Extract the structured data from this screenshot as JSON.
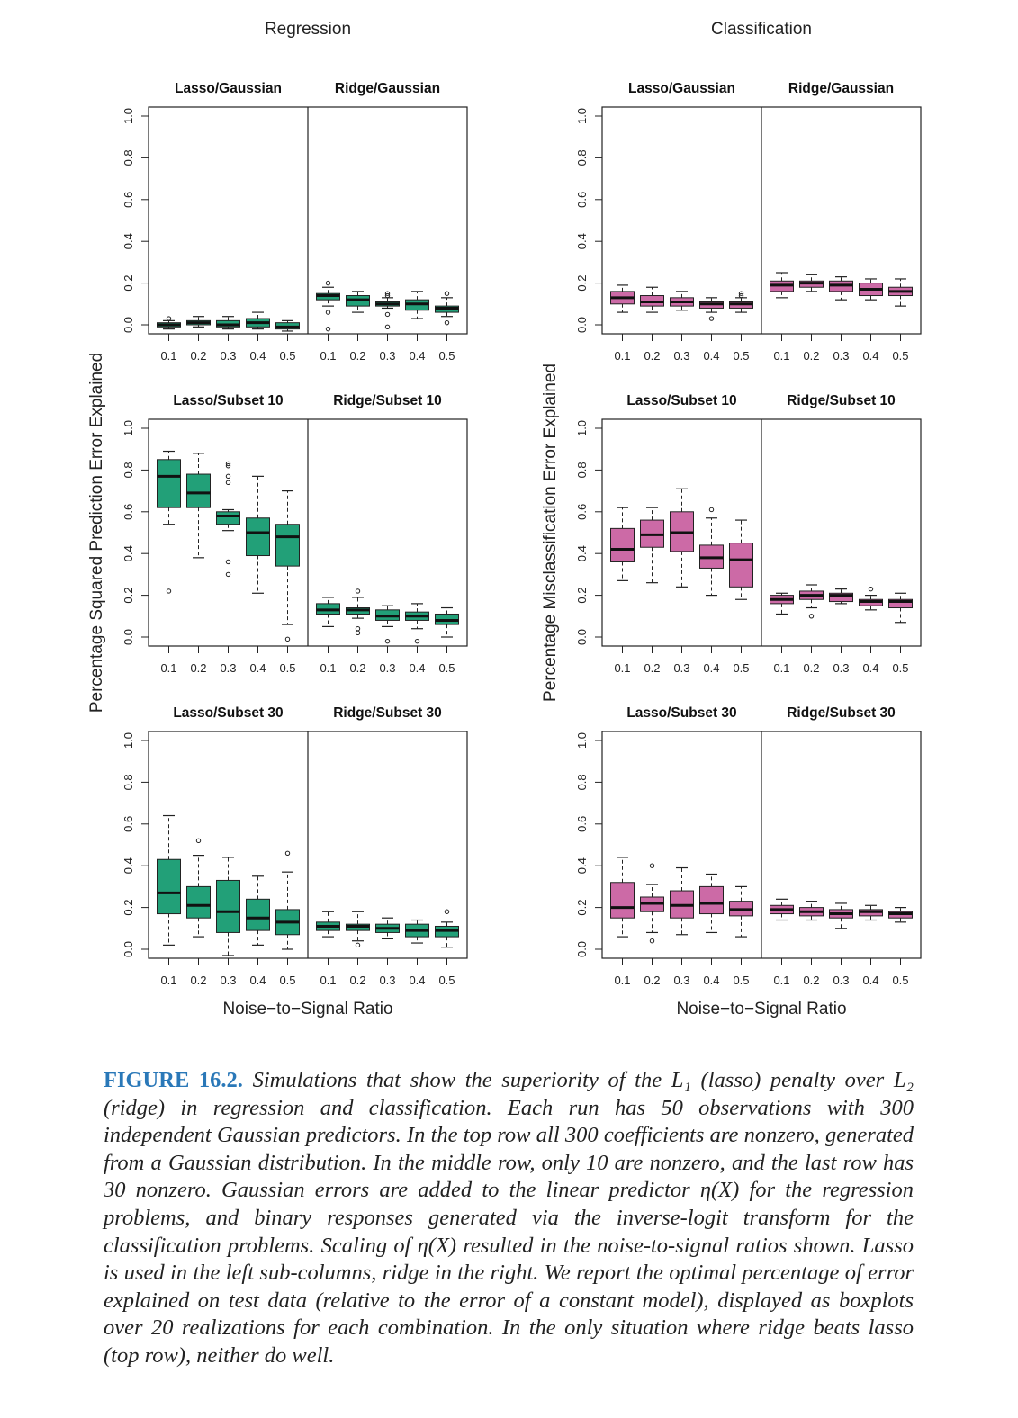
{
  "chart_data": {
    "type": "box",
    "column_titles": [
      "Regression",
      "Classification"
    ],
    "ylabels": [
      "Percentage Squared Prediction Error Explained",
      "Percentage Misclassification Error Explained"
    ],
    "xlabel": "Noise−to−Signal Ratio",
    "x_ticks": [
      "0.1",
      "0.2",
      "0.3",
      "0.4",
      "0.5"
    ],
    "y_ticks": [
      "0.0",
      "0.2",
      "0.4",
      "0.6",
      "0.8",
      "1.0"
    ],
    "ylim": [
      0,
      1
    ],
    "colors": {
      "regression": "#22a078",
      "classification": "#cc6aa6"
    },
    "grid": false,
    "box_stats_order": [
      "lower_whisker",
      "q1",
      "median",
      "q3",
      "upper_whisker"
    ],
    "panels": [
      {
        "title": "Lasso/Gaussian",
        "column": "Regression",
        "row": 1,
        "method": "lasso",
        "boxes": [
          [
            -0.02,
            -0.01,
            0.0,
            0.01,
            0.02
          ],
          [
            -0.01,
            0.0,
            0.01,
            0.02,
            0.04
          ],
          [
            -0.02,
            -0.01,
            0.0,
            0.02,
            0.04
          ],
          [
            -0.02,
            -0.01,
            0.01,
            0.03,
            0.06
          ],
          [
            -0.03,
            -0.02,
            -0.01,
            0.01,
            0.02
          ]
        ],
        "outliers": [
          [
            0.03
          ],
          [],
          [],
          [],
          []
        ]
      },
      {
        "title": "Ridge/Gaussian",
        "column": "Regression",
        "row": 1,
        "method": "ridge",
        "boxes": [
          [
            0.09,
            0.12,
            0.14,
            0.15,
            0.18
          ],
          [
            0.06,
            0.09,
            0.12,
            0.14,
            0.16
          ],
          [
            0.08,
            0.09,
            0.1,
            0.11,
            0.13
          ],
          [
            0.03,
            0.07,
            0.1,
            0.12,
            0.16
          ],
          [
            0.04,
            0.06,
            0.08,
            0.09,
            0.13
          ]
        ],
        "outliers": [
          [
            0.2,
            0.06,
            -0.02
          ],
          [],
          [
            0.15,
            0.14,
            0.05,
            -0.01
          ],
          [],
          [
            0.15,
            0.01
          ]
        ]
      },
      {
        "title": "Lasso/Gaussian",
        "column": "Classification",
        "row": 1,
        "method": "lasso",
        "boxes": [
          [
            0.06,
            0.1,
            0.13,
            0.16,
            0.19
          ],
          [
            0.06,
            0.09,
            0.11,
            0.14,
            0.18
          ],
          [
            0.07,
            0.09,
            0.11,
            0.13,
            0.16
          ],
          [
            0.06,
            0.08,
            0.1,
            0.11,
            0.13
          ],
          [
            0.06,
            0.08,
            0.1,
            0.11,
            0.13
          ]
        ],
        "outliers": [
          [],
          [],
          [],
          [
            0.03
          ],
          [
            0.15,
            0.14
          ]
        ]
      },
      {
        "title": "Ridge/Gaussian",
        "column": "Classification",
        "row": 1,
        "method": "ridge",
        "boxes": [
          [
            0.13,
            0.16,
            0.19,
            0.21,
            0.25
          ],
          [
            0.16,
            0.18,
            0.2,
            0.21,
            0.24
          ],
          [
            0.12,
            0.16,
            0.19,
            0.21,
            0.23
          ],
          [
            0.12,
            0.14,
            0.17,
            0.2,
            0.22
          ],
          [
            0.09,
            0.14,
            0.16,
            0.18,
            0.22
          ]
        ],
        "outliers": [
          [],
          [],
          [],
          [],
          []
        ]
      },
      {
        "title": "Lasso/Subset 10",
        "column": "Regression",
        "row": 2,
        "method": "lasso",
        "boxes": [
          [
            0.54,
            0.62,
            0.77,
            0.85,
            0.89
          ],
          [
            0.38,
            0.62,
            0.69,
            0.78,
            0.88
          ],
          [
            0.51,
            0.54,
            0.58,
            0.6,
            0.61
          ],
          [
            0.21,
            0.39,
            0.5,
            0.57,
            0.77
          ],
          [
            0.06,
            0.34,
            0.48,
            0.54,
            0.7
          ]
        ],
        "outliers": [
          [
            0.22
          ],
          [],
          [
            0.83,
            0.82,
            0.77,
            0.74,
            0.36,
            0.3
          ],
          [],
          [
            -0.01
          ]
        ]
      },
      {
        "title": "Ridge/Subset 10",
        "column": "Regression",
        "row": 2,
        "method": "ridge",
        "boxes": [
          [
            0.05,
            0.11,
            0.13,
            0.16,
            0.19
          ],
          [
            0.09,
            0.11,
            0.13,
            0.14,
            0.19
          ],
          [
            0.05,
            0.08,
            0.1,
            0.13,
            0.15
          ],
          [
            0.04,
            0.08,
            0.1,
            0.12,
            0.16
          ],
          [
            0.0,
            0.06,
            0.08,
            0.11,
            0.14
          ]
        ],
        "outliers": [
          [],
          [
            0.22,
            0.04,
            0.02
          ],
          [
            -0.02
          ],
          [
            -0.02
          ],
          []
        ]
      },
      {
        "title": "Lasso/Subset 10",
        "column": "Classification",
        "row": 2,
        "method": "lasso",
        "boxes": [
          [
            0.27,
            0.36,
            0.42,
            0.52,
            0.62
          ],
          [
            0.26,
            0.43,
            0.49,
            0.56,
            0.62
          ],
          [
            0.24,
            0.41,
            0.5,
            0.6,
            0.71
          ],
          [
            0.2,
            0.33,
            0.38,
            0.44,
            0.57
          ],
          [
            0.18,
            0.24,
            0.37,
            0.45,
            0.56
          ]
        ],
        "outliers": [
          [],
          [],
          [],
          [
            0.61
          ],
          []
        ]
      },
      {
        "title": "Ridge/Subset 10",
        "column": "Classification",
        "row": 2,
        "method": "ridge",
        "boxes": [
          [
            0.11,
            0.16,
            0.18,
            0.2,
            0.21
          ],
          [
            0.14,
            0.18,
            0.2,
            0.22,
            0.25
          ],
          [
            0.16,
            0.17,
            0.2,
            0.21,
            0.23
          ],
          [
            0.13,
            0.15,
            0.17,
            0.18,
            0.2
          ],
          [
            0.07,
            0.14,
            0.17,
            0.18,
            0.21
          ]
        ],
        "outliers": [
          [],
          [
            0.1
          ],
          [],
          [
            0.23
          ],
          []
        ]
      },
      {
        "title": "Lasso/Subset 30",
        "column": "Regression",
        "row": 3,
        "method": "lasso",
        "boxes": [
          [
            0.02,
            0.17,
            0.27,
            0.43,
            0.64
          ],
          [
            0.06,
            0.15,
            0.21,
            0.3,
            0.45
          ],
          [
            -0.03,
            0.08,
            0.18,
            0.33,
            0.44
          ],
          [
            0.02,
            0.09,
            0.15,
            0.24,
            0.35
          ],
          [
            0.0,
            0.07,
            0.13,
            0.19,
            0.37
          ]
        ],
        "outliers": [
          [],
          [
            0.52
          ],
          [],
          [],
          [
            0.46
          ]
        ]
      },
      {
        "title": "Ridge/Subset 30",
        "column": "Regression",
        "row": 3,
        "method": "ridge",
        "boxes": [
          [
            0.06,
            0.09,
            0.11,
            0.13,
            0.18
          ],
          [
            0.04,
            0.09,
            0.11,
            0.12,
            0.18
          ],
          [
            0.05,
            0.08,
            0.1,
            0.12,
            0.15
          ],
          [
            0.03,
            0.06,
            0.09,
            0.12,
            0.14
          ],
          [
            0.01,
            0.06,
            0.09,
            0.11,
            0.13
          ]
        ],
        "outliers": [
          [],
          [
            0.02
          ],
          [],
          [],
          [
            0.18
          ]
        ]
      },
      {
        "title": "Lasso/Subset 30",
        "column": "Classification",
        "row": 3,
        "method": "lasso",
        "boxes": [
          [
            0.06,
            0.15,
            0.2,
            0.32,
            0.44
          ],
          [
            0.08,
            0.18,
            0.22,
            0.25,
            0.31
          ],
          [
            0.07,
            0.15,
            0.21,
            0.28,
            0.39
          ],
          [
            0.08,
            0.17,
            0.22,
            0.3,
            0.36
          ],
          [
            0.06,
            0.16,
            0.19,
            0.23,
            0.3
          ]
        ],
        "outliers": [
          [],
          [
            0.4,
            0.04
          ],
          [],
          [],
          []
        ]
      },
      {
        "title": "Ridge/Subset 30",
        "column": "Classification",
        "row": 3,
        "method": "ridge",
        "boxes": [
          [
            0.14,
            0.17,
            0.19,
            0.21,
            0.24
          ],
          [
            0.14,
            0.16,
            0.18,
            0.2,
            0.23
          ],
          [
            0.1,
            0.15,
            0.17,
            0.19,
            0.22
          ],
          [
            0.14,
            0.16,
            0.18,
            0.19,
            0.21
          ],
          [
            0.13,
            0.15,
            0.17,
            0.18,
            0.2
          ]
        ],
        "outliers": [
          [],
          [],
          [],
          [],
          []
        ]
      }
    ]
  },
  "caption": {
    "label": "FIGURE 16.2.",
    "text": " Simulations that show the superiority of the L₁ (lasso) penalty over L₂ (ridge) in regression and classification. Each run has 50 observations with 300 independent Gaussian predictors. In the top row all 300 coefficients are nonzero, generated from a Gaussian distribution. In the middle row, only 10 are nonzero, and the last row has 30 nonzero. Gaussian errors are added to the linear predictor η(X) for the regression problems, and binary responses generated via the inverse-logit transform for the classification problems. Scaling of η(X) resulted in the noise-to-signal ratios shown. Lasso is used in the left sub-columns, ridge in the right. We report the optimal percentage of error explained on test data (relative to the error of a constant model), displayed as boxplots over 20 realizations for each combination. In the only situation where ridge beats lasso (top row), neither do well."
  }
}
